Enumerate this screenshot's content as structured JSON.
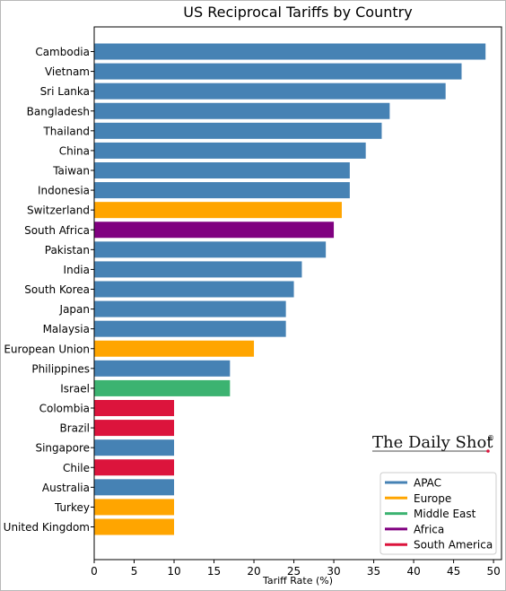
{
  "chart_data": {
    "type": "bar",
    "orientation": "horizontal",
    "title": "US Reciprocal Tariffs by Country",
    "xlabel": "Tariff Rate (%)",
    "ylabel": "",
    "xlim": [
      0,
      51
    ],
    "xticks": [
      0,
      5,
      10,
      15,
      20,
      25,
      30,
      35,
      40,
      45,
      50
    ],
    "grid": false,
    "legend_position": "bottom-right",
    "categories": [
      "Cambodia",
      "Vietnam",
      "Sri Lanka",
      "Bangladesh",
      "Thailand",
      "China",
      "Taiwan",
      "Indonesia",
      "Switzerland",
      "South Africa",
      "Pakistan",
      "India",
      "South Korea",
      "Japan",
      "Malaysia",
      "European Union",
      "Philippines",
      "Israel",
      "Colombia",
      "Brazil",
      "Singapore",
      "Chile",
      "Australia",
      "Turkey",
      "United Kingdom"
    ],
    "values": [
      49,
      46,
      44,
      37,
      36,
      34,
      32,
      32,
      31,
      30,
      29,
      26,
      25,
      24,
      24,
      20,
      17,
      17,
      10,
      10,
      10,
      10,
      10,
      10,
      10
    ],
    "regions": [
      "APAC",
      "APAC",
      "APAC",
      "APAC",
      "APAC",
      "APAC",
      "APAC",
      "APAC",
      "Europe",
      "Africa",
      "APAC",
      "APAC",
      "APAC",
      "APAC",
      "APAC",
      "Europe",
      "APAC",
      "Middle East",
      "South America",
      "South America",
      "APAC",
      "South America",
      "APAC",
      "Europe",
      "Europe"
    ],
    "legend": [
      {
        "name": "APAC",
        "color": "#4682b4"
      },
      {
        "name": "Europe",
        "color": "#ffa500"
      },
      {
        "name": "Middle East",
        "color": "#3cb371"
      },
      {
        "name": "Africa",
        "color": "#800080"
      },
      {
        "name": "South America",
        "color": "#dc143c"
      }
    ]
  },
  "branding": {
    "text": "The Daily Shot",
    "mark": "®"
  }
}
